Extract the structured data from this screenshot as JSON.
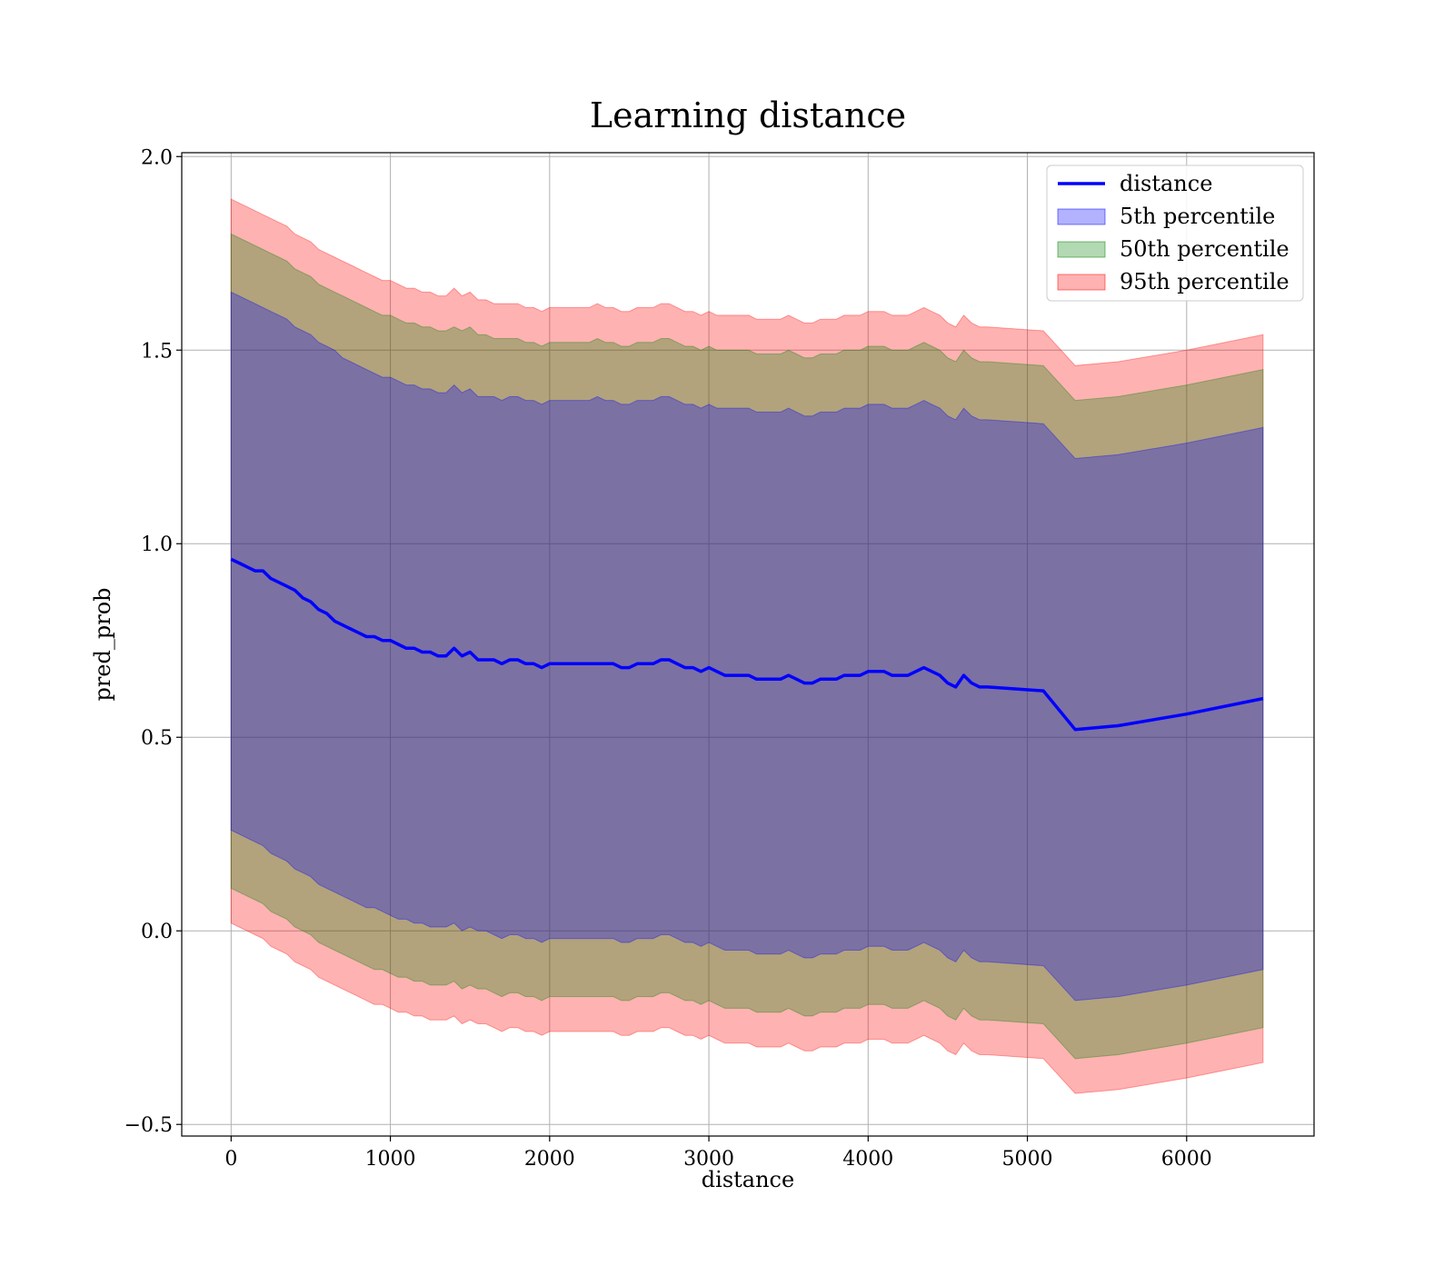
{
  "chart_data": {
    "type": "area",
    "title": "Learning distance",
    "xlabel": "distance",
    "ylabel": "pred_prob",
    "xlim": [
      -310,
      6800
    ],
    "ylim": [
      -0.53,
      2.01
    ],
    "xticks": [
      0,
      1000,
      2000,
      3000,
      4000,
      5000,
      6000
    ],
    "xtick_labels": [
      "0",
      "1000",
      "2000",
      "3000",
      "4000",
      "5000",
      "6000"
    ],
    "yticks": [
      -0.5,
      0.0,
      0.5,
      1.0,
      1.5,
      2.0
    ],
    "ytick_labels": [
      "−0.5",
      "0.0",
      "0.5",
      "1.0",
      "1.5",
      "2.0"
    ],
    "grid": true,
    "legend_position": "top-right",
    "legend": [
      "distance",
      "5th percentile",
      "50th percentile",
      "95th percentile"
    ],
    "colors": {
      "line": "#0000ff",
      "band_5": "#0000ff",
      "band_50": "#008000",
      "band_95": "#ff0000"
    },
    "series": [
      {
        "name": "distance",
        "x": [
          0,
          50,
          100,
          150,
          200,
          250,
          300,
          350,
          400,
          450,
          500,
          550,
          600,
          650,
          700,
          750,
          800,
          850,
          900,
          950,
          1000,
          1050,
          1100,
          1150,
          1200,
          1250,
          1300,
          1350,
          1400,
          1450,
          1500,
          1550,
          1600,
          1650,
          1700,
          1750,
          1800,
          1850,
          1900,
          1950,
          2000,
          2050,
          2100,
          2150,
          2200,
          2250,
          2300,
          2350,
          2400,
          2450,
          2500,
          2550,
          2600,
          2650,
          2700,
          2750,
          2800,
          2850,
          2900,
          2950,
          3000,
          3050,
          3100,
          3150,
          3200,
          3250,
          3300,
          3350,
          3400,
          3450,
          3500,
          3550,
          3600,
          3650,
          3700,
          3750,
          3800,
          3850,
          3900,
          3950,
          4000,
          4050,
          4100,
          4150,
          4200,
          4250,
          4300,
          4350,
          4400,
          4450,
          4500,
          4550,
          4600,
          4650,
          4700,
          4750,
          5100,
          5300,
          5570,
          6000,
          6480
        ],
        "values": [
          0.96,
          0.95,
          0.94,
          0.93,
          0.93,
          0.91,
          0.9,
          0.89,
          0.88,
          0.86,
          0.85,
          0.83,
          0.82,
          0.8,
          0.79,
          0.78,
          0.77,
          0.76,
          0.76,
          0.75,
          0.75,
          0.74,
          0.73,
          0.73,
          0.72,
          0.72,
          0.71,
          0.71,
          0.73,
          0.71,
          0.72,
          0.7,
          0.7,
          0.7,
          0.69,
          0.7,
          0.7,
          0.69,
          0.69,
          0.68,
          0.69,
          0.69,
          0.69,
          0.69,
          0.69,
          0.69,
          0.69,
          0.69,
          0.69,
          0.68,
          0.68,
          0.69,
          0.69,
          0.69,
          0.7,
          0.7,
          0.69,
          0.68,
          0.68,
          0.67,
          0.68,
          0.67,
          0.66,
          0.66,
          0.66,
          0.66,
          0.65,
          0.65,
          0.65,
          0.65,
          0.66,
          0.65,
          0.64,
          0.64,
          0.65,
          0.65,
          0.65,
          0.66,
          0.66,
          0.66,
          0.67,
          0.67,
          0.67,
          0.66,
          0.66,
          0.66,
          0.67,
          0.68,
          0.67,
          0.66,
          0.64,
          0.63,
          0.66,
          0.64,
          0.63,
          0.63,
          0.62,
          0.52,
          0.53,
          0.56,
          0.6
        ]
      },
      {
        "name": "5th percentile",
        "x": [
          0,
          50,
          100,
          150,
          200,
          250,
          300,
          350,
          400,
          450,
          500,
          550,
          600,
          650,
          700,
          750,
          800,
          850,
          900,
          950,
          1000,
          1050,
          1100,
          1150,
          1200,
          1250,
          1300,
          1350,
          1400,
          1450,
          1500,
          1550,
          1600,
          1650,
          1700,
          1750,
          1800,
          1850,
          1900,
          1950,
          2000,
          2050,
          2100,
          2150,
          2200,
          2250,
          2300,
          2350,
          2400,
          2450,
          2500,
          2550,
          2600,
          2650,
          2700,
          2750,
          2800,
          2850,
          2900,
          2950,
          3000,
          3050,
          3100,
          3150,
          3200,
          3250,
          3300,
          3350,
          3400,
          3450,
          3500,
          3550,
          3600,
          3650,
          3700,
          3750,
          3800,
          3850,
          3900,
          3950,
          4000,
          4050,
          4100,
          4150,
          4200,
          4250,
          4300,
          4350,
          4400,
          4450,
          4500,
          4550,
          4600,
          4650,
          4700,
          4750,
          5100,
          5300,
          5570,
          6000,
          6480
        ],
        "lower": [
          0.26,
          0.25,
          0.24,
          0.23,
          0.22,
          0.2,
          0.19,
          0.18,
          0.16,
          0.15,
          0.14,
          0.12,
          0.11,
          0.1,
          0.09,
          0.08,
          0.07,
          0.06,
          0.06,
          0.05,
          0.04,
          0.03,
          0.03,
          0.02,
          0.02,
          0.01,
          0.01,
          0.01,
          0.02,
          0.0,
          0.01,
          0.0,
          0.0,
          -0.01,
          -0.02,
          -0.01,
          -0.01,
          -0.02,
          -0.02,
          -0.03,
          -0.02,
          -0.02,
          -0.02,
          -0.02,
          -0.02,
          -0.02,
          -0.02,
          -0.02,
          -0.02,
          -0.03,
          -0.03,
          -0.02,
          -0.02,
          -0.02,
          -0.01,
          -0.01,
          -0.02,
          -0.03,
          -0.03,
          -0.04,
          -0.03,
          -0.04,
          -0.05,
          -0.05,
          -0.05,
          -0.05,
          -0.06,
          -0.06,
          -0.06,
          -0.06,
          -0.05,
          -0.06,
          -0.07,
          -0.07,
          -0.06,
          -0.06,
          -0.06,
          -0.05,
          -0.05,
          -0.05,
          -0.04,
          -0.04,
          -0.04,
          -0.05,
          -0.05,
          -0.05,
          -0.04,
          -0.03,
          -0.04,
          -0.05,
          -0.07,
          -0.08,
          -0.05,
          -0.07,
          -0.08,
          -0.08,
          -0.09,
          -0.18,
          -0.17,
          -0.14,
          -0.1
        ],
        "upper": [
          1.65,
          1.64,
          1.63,
          1.62,
          1.61,
          1.6,
          1.59,
          1.58,
          1.56,
          1.55,
          1.54,
          1.52,
          1.51,
          1.5,
          1.48,
          1.47,
          1.46,
          1.45,
          1.44,
          1.43,
          1.43,
          1.42,
          1.41,
          1.41,
          1.4,
          1.4,
          1.39,
          1.39,
          1.41,
          1.39,
          1.4,
          1.38,
          1.38,
          1.38,
          1.37,
          1.38,
          1.38,
          1.37,
          1.37,
          1.36,
          1.37,
          1.37,
          1.37,
          1.37,
          1.37,
          1.37,
          1.38,
          1.37,
          1.37,
          1.36,
          1.36,
          1.37,
          1.37,
          1.37,
          1.38,
          1.38,
          1.37,
          1.36,
          1.36,
          1.35,
          1.36,
          1.35,
          1.35,
          1.35,
          1.35,
          1.35,
          1.34,
          1.34,
          1.34,
          1.34,
          1.35,
          1.34,
          1.33,
          1.33,
          1.34,
          1.34,
          1.34,
          1.35,
          1.35,
          1.35,
          1.36,
          1.36,
          1.36,
          1.35,
          1.35,
          1.35,
          1.36,
          1.37,
          1.36,
          1.35,
          1.33,
          1.32,
          1.35,
          1.33,
          1.32,
          1.32,
          1.31,
          1.22,
          1.23,
          1.26,
          1.3
        ]
      },
      {
        "name": "50th percentile",
        "x": [
          0,
          50,
          100,
          150,
          200,
          250,
          300,
          350,
          400,
          450,
          500,
          550,
          600,
          650,
          700,
          750,
          800,
          850,
          900,
          950,
          1000,
          1050,
          1100,
          1150,
          1200,
          1250,
          1300,
          1350,
          1400,
          1450,
          1500,
          1550,
          1600,
          1650,
          1700,
          1750,
          1800,
          1850,
          1900,
          1950,
          2000,
          2050,
          2100,
          2150,
          2200,
          2250,
          2300,
          2350,
          2400,
          2450,
          2500,
          2550,
          2600,
          2650,
          2700,
          2750,
          2800,
          2850,
          2900,
          2950,
          3000,
          3050,
          3100,
          3150,
          3200,
          3250,
          3300,
          3350,
          3400,
          3450,
          3500,
          3550,
          3600,
          3650,
          3700,
          3750,
          3800,
          3850,
          3900,
          3950,
          4000,
          4050,
          4100,
          4150,
          4200,
          4250,
          4300,
          4350,
          4400,
          4450,
          4500,
          4550,
          4600,
          4650,
          4700,
          4750,
          5100,
          5300,
          5570,
          6000,
          6480
        ],
        "lower": [
          0.11,
          0.1,
          0.09,
          0.08,
          0.07,
          0.05,
          0.04,
          0.03,
          0.01,
          0.0,
          -0.01,
          -0.03,
          -0.04,
          -0.05,
          -0.06,
          -0.07,
          -0.08,
          -0.09,
          -0.1,
          -0.1,
          -0.11,
          -0.12,
          -0.12,
          -0.13,
          -0.13,
          -0.14,
          -0.14,
          -0.14,
          -0.13,
          -0.15,
          -0.14,
          -0.15,
          -0.15,
          -0.16,
          -0.17,
          -0.16,
          -0.16,
          -0.17,
          -0.17,
          -0.18,
          -0.17,
          -0.17,
          -0.17,
          -0.17,
          -0.17,
          -0.17,
          -0.17,
          -0.17,
          -0.17,
          -0.18,
          -0.18,
          -0.17,
          -0.17,
          -0.17,
          -0.16,
          -0.16,
          -0.17,
          -0.18,
          -0.18,
          -0.19,
          -0.18,
          -0.19,
          -0.2,
          -0.2,
          -0.2,
          -0.2,
          -0.21,
          -0.21,
          -0.21,
          -0.21,
          -0.2,
          -0.21,
          -0.22,
          -0.22,
          -0.21,
          -0.21,
          -0.21,
          -0.2,
          -0.2,
          -0.2,
          -0.19,
          -0.19,
          -0.19,
          -0.2,
          -0.2,
          -0.2,
          -0.19,
          -0.18,
          -0.19,
          -0.2,
          -0.22,
          -0.23,
          -0.2,
          -0.22,
          -0.23,
          -0.23,
          -0.24,
          -0.33,
          -0.32,
          -0.29,
          -0.25
        ],
        "upper": [
          1.8,
          1.79,
          1.78,
          1.77,
          1.76,
          1.75,
          1.74,
          1.73,
          1.71,
          1.7,
          1.69,
          1.67,
          1.66,
          1.65,
          1.64,
          1.63,
          1.62,
          1.61,
          1.6,
          1.59,
          1.59,
          1.58,
          1.57,
          1.57,
          1.56,
          1.56,
          1.55,
          1.55,
          1.56,
          1.55,
          1.56,
          1.54,
          1.54,
          1.53,
          1.53,
          1.53,
          1.53,
          1.52,
          1.52,
          1.51,
          1.52,
          1.52,
          1.52,
          1.52,
          1.52,
          1.52,
          1.53,
          1.52,
          1.52,
          1.51,
          1.51,
          1.52,
          1.52,
          1.52,
          1.53,
          1.53,
          1.52,
          1.51,
          1.51,
          1.5,
          1.51,
          1.5,
          1.5,
          1.5,
          1.5,
          1.5,
          1.49,
          1.49,
          1.49,
          1.49,
          1.5,
          1.49,
          1.48,
          1.48,
          1.49,
          1.49,
          1.49,
          1.5,
          1.5,
          1.5,
          1.51,
          1.51,
          1.51,
          1.5,
          1.5,
          1.5,
          1.51,
          1.52,
          1.51,
          1.5,
          1.48,
          1.47,
          1.5,
          1.48,
          1.47,
          1.47,
          1.46,
          1.37,
          1.38,
          1.41,
          1.45
        ]
      },
      {
        "name": "95th percentile",
        "x": [
          0,
          50,
          100,
          150,
          200,
          250,
          300,
          350,
          400,
          450,
          500,
          550,
          600,
          650,
          700,
          750,
          800,
          850,
          900,
          950,
          1000,
          1050,
          1100,
          1150,
          1200,
          1250,
          1300,
          1350,
          1400,
          1450,
          1500,
          1550,
          1600,
          1650,
          1700,
          1750,
          1800,
          1850,
          1900,
          1950,
          2000,
          2050,
          2100,
          2150,
          2200,
          2250,
          2300,
          2350,
          2400,
          2450,
          2500,
          2550,
          2600,
          2650,
          2700,
          2750,
          2800,
          2850,
          2900,
          2950,
          3000,
          3050,
          3100,
          3150,
          3200,
          3250,
          3300,
          3350,
          3400,
          3450,
          3500,
          3550,
          3600,
          3650,
          3700,
          3750,
          3800,
          3850,
          3900,
          3950,
          4000,
          4050,
          4100,
          4150,
          4200,
          4250,
          4300,
          4350,
          4400,
          4450,
          4500,
          4550,
          4600,
          4650,
          4700,
          4750,
          5100,
          5300,
          5570,
          6000,
          6480
        ],
        "lower": [
          0.02,
          0.01,
          0.0,
          -0.01,
          -0.02,
          -0.04,
          -0.05,
          -0.06,
          -0.08,
          -0.09,
          -0.1,
          -0.12,
          -0.13,
          -0.14,
          -0.15,
          -0.16,
          -0.17,
          -0.18,
          -0.19,
          -0.19,
          -0.2,
          -0.21,
          -0.21,
          -0.22,
          -0.22,
          -0.23,
          -0.23,
          -0.23,
          -0.22,
          -0.24,
          -0.23,
          -0.24,
          -0.24,
          -0.25,
          -0.26,
          -0.25,
          -0.25,
          -0.26,
          -0.26,
          -0.27,
          -0.26,
          -0.26,
          -0.26,
          -0.26,
          -0.26,
          -0.26,
          -0.26,
          -0.26,
          -0.26,
          -0.27,
          -0.27,
          -0.26,
          -0.26,
          -0.26,
          -0.25,
          -0.25,
          -0.26,
          -0.27,
          -0.27,
          -0.28,
          -0.27,
          -0.28,
          -0.29,
          -0.29,
          -0.29,
          -0.29,
          -0.3,
          -0.3,
          -0.3,
          -0.3,
          -0.29,
          -0.3,
          -0.31,
          -0.31,
          -0.3,
          -0.3,
          -0.3,
          -0.29,
          -0.29,
          -0.29,
          -0.28,
          -0.28,
          -0.28,
          -0.29,
          -0.29,
          -0.29,
          -0.28,
          -0.27,
          -0.28,
          -0.29,
          -0.31,
          -0.32,
          -0.29,
          -0.31,
          -0.32,
          -0.32,
          -0.33,
          -0.42,
          -0.41,
          -0.38,
          -0.34
        ],
        "upper": [
          1.89,
          1.88,
          1.87,
          1.86,
          1.85,
          1.84,
          1.83,
          1.82,
          1.8,
          1.79,
          1.78,
          1.76,
          1.75,
          1.74,
          1.73,
          1.72,
          1.71,
          1.7,
          1.69,
          1.68,
          1.68,
          1.67,
          1.66,
          1.66,
          1.65,
          1.65,
          1.64,
          1.64,
          1.66,
          1.64,
          1.65,
          1.63,
          1.63,
          1.62,
          1.62,
          1.62,
          1.62,
          1.61,
          1.61,
          1.6,
          1.61,
          1.61,
          1.61,
          1.61,
          1.61,
          1.61,
          1.62,
          1.61,
          1.61,
          1.6,
          1.6,
          1.61,
          1.61,
          1.61,
          1.62,
          1.62,
          1.61,
          1.6,
          1.6,
          1.59,
          1.6,
          1.59,
          1.59,
          1.59,
          1.59,
          1.59,
          1.58,
          1.58,
          1.58,
          1.58,
          1.59,
          1.58,
          1.57,
          1.57,
          1.58,
          1.58,
          1.58,
          1.59,
          1.59,
          1.59,
          1.6,
          1.6,
          1.6,
          1.59,
          1.59,
          1.59,
          1.6,
          1.61,
          1.6,
          1.59,
          1.57,
          1.56,
          1.59,
          1.57,
          1.56,
          1.56,
          1.55,
          1.46,
          1.47,
          1.5,
          1.54
        ]
      }
    ]
  }
}
